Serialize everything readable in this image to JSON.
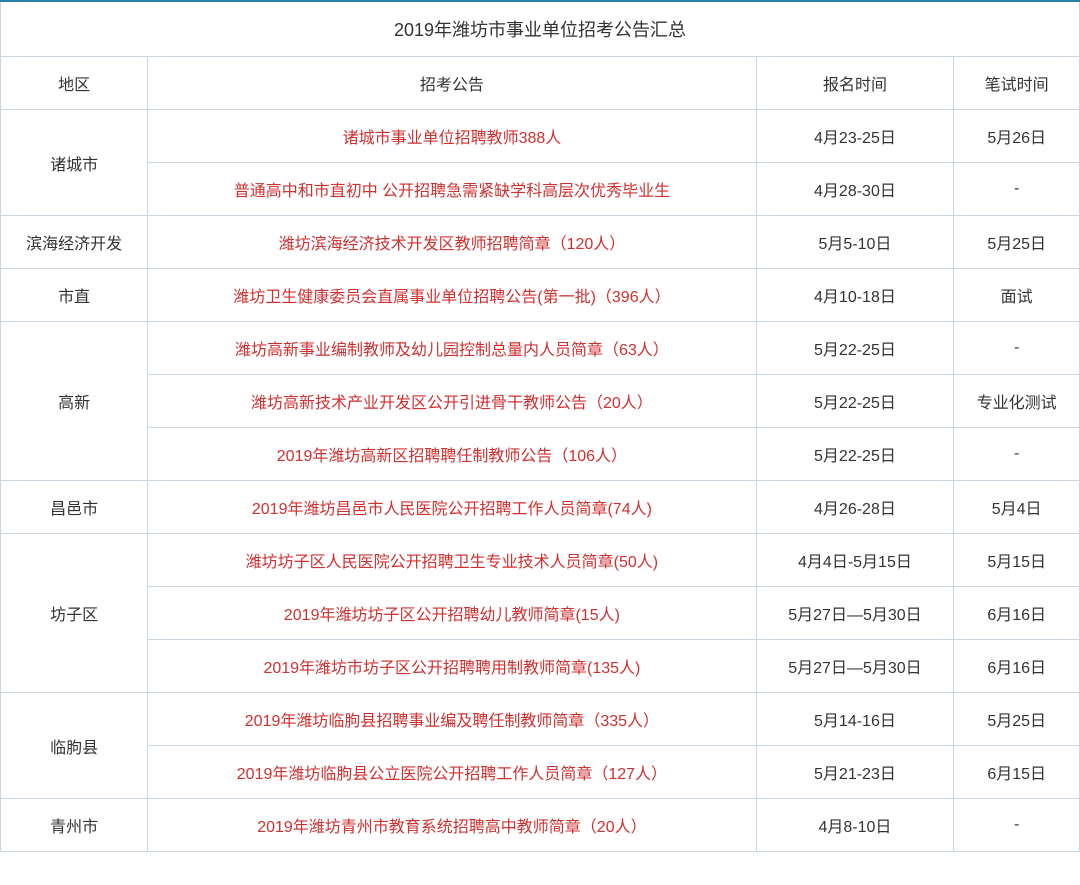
{
  "title": "2019年潍坊市事业单位招考公告汇总",
  "headers": {
    "region": "地区",
    "notice": "招考公告",
    "signup": "报名时间",
    "exam": "笔试时间"
  },
  "colors": {
    "border": "#c9d6df",
    "topBorder": "#2a7fa5",
    "linkText": "#d03030",
    "text": "#333333",
    "background": "#ffffff"
  },
  "font": {
    "titleSize": 18,
    "bodySize": 16,
    "family": "Microsoft YaHei"
  },
  "regions": [
    {
      "name": "诸城市",
      "rows": [
        {
          "notice": "诸城市事业单位招聘教师388人",
          "signup": "4月23-25日",
          "exam": "5月26日"
        },
        {
          "notice": "普通高中和市直初中 公开招聘急需紧缺学科高层次优秀毕业生",
          "signup": "4月28-30日",
          "exam": "-"
        }
      ]
    },
    {
      "name": "滨海经济开发",
      "rows": [
        {
          "notice": "潍坊滨海经济技术开发区教师招聘简章（120人）",
          "signup": "5月5-10日",
          "exam": "5月25日"
        }
      ]
    },
    {
      "name": "市直",
      "rows": [
        {
          "notice": "潍坊卫生健康委员会直属事业单位招聘公告(第一批)（396人）",
          "signup": "4月10-18日",
          "exam": "面试"
        }
      ]
    },
    {
      "name": "高新",
      "rows": [
        {
          "notice": "潍坊高新事业编制教师及幼儿园控制总量内人员简章（63人）",
          "signup": "5月22-25日",
          "exam": "-"
        },
        {
          "notice": "潍坊高新技术产业开发区公开引进骨干教师公告（20人）",
          "signup": "5月22-25日",
          "exam": "专业化测试"
        },
        {
          "notice": "2019年潍坊高新区招聘聘任制教师公告（106人）",
          "signup": "5月22-25日",
          "exam": "-"
        }
      ]
    },
    {
      "name": "昌邑市",
      "rows": [
        {
          "notice": "2019年潍坊昌邑市人民医院公开招聘工作人员简章(74人)",
          "signup": "4月26-28日",
          "exam": "5月4日"
        }
      ]
    },
    {
      "name": "坊子区",
      "rows": [
        {
          "notice": "潍坊坊子区人民医院公开招聘卫生专业技术人员简章(50人)",
          "signup": "4月4日-5月15日",
          "exam": "5月15日"
        },
        {
          "notice": "2019年潍坊坊子区公开招聘幼儿教师简章(15人)",
          "signup": "5月27日—5月30日",
          "exam": "6月16日"
        },
        {
          "notice": "2019年潍坊市坊子区公开招聘聘用制教师简章(135人)",
          "signup": "5月27日—5月30日",
          "exam": "6月16日"
        }
      ]
    },
    {
      "name": "临朐县",
      "rows": [
        {
          "notice": "2019年潍坊临朐县招聘事业编及聘任制教师简章（335人）",
          "signup": "5月14-16日",
          "exam": "5月25日"
        },
        {
          "notice": "2019年潍坊临朐县公立医院公开招聘工作人员简章（127人）",
          "signup": "5月21-23日",
          "exam": "6月15日"
        }
      ]
    },
    {
      "name": "青州市",
      "rows": [
        {
          "notice": "2019年潍坊青州市教育系统招聘高中教师简章（20人）",
          "signup": "4月8-10日",
          "exam": "-"
        }
      ]
    }
  ]
}
